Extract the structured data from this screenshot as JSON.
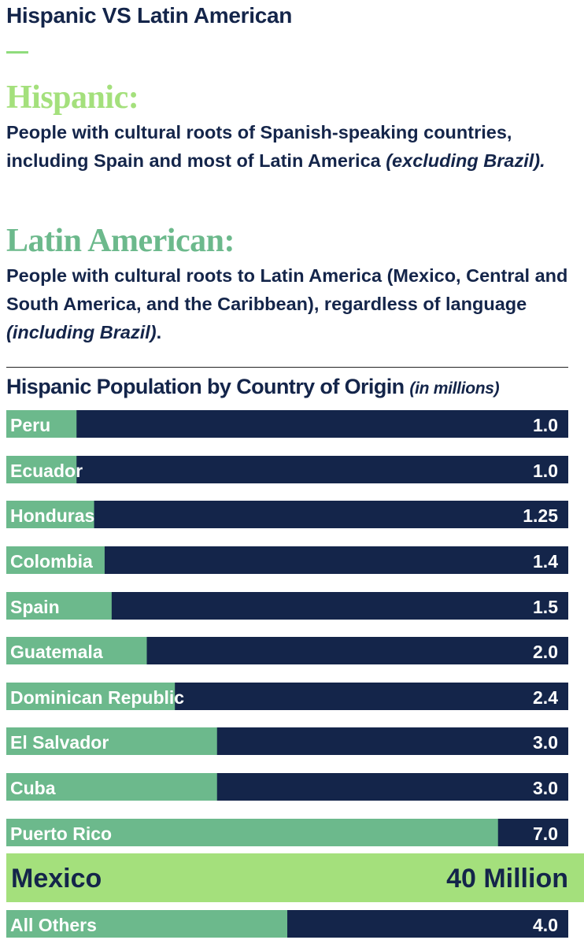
{
  "page": {
    "title": "Hispanic VS Latin American"
  },
  "definitions": {
    "hispanic": {
      "heading": "Hispanic:",
      "text": "People with cultural roots of Spanish-speaking countries, including Spain and most of Latin America ",
      "note": "(excluding Brazil)."
    },
    "latin_american": {
      "heading": "Latin American:",
      "text": "People with cultural roots to Latin America (Mexico, Central and South America, and the Caribbean), regardless of language ",
      "note": "(including Brazil)",
      "trail": "."
    }
  },
  "colors": {
    "navy": "#14254a",
    "green": "#6cb98c",
    "light_green": "#a4e07c",
    "hispanic_heading": "#a4e07c",
    "latin_heading": "#6cb98c"
  },
  "chart_data": {
    "type": "bar",
    "orientation": "horizontal",
    "title": "Hispanic Population by Country of Origin",
    "unit_label": "(in millions)",
    "xlim": [
      0,
      8
    ],
    "categories": [
      "Peru",
      "Ecuador",
      "Honduras",
      "Colombia",
      "Spain",
      "Guatemala",
      "Dominican Republic",
      "El Salvador",
      "Cuba",
      "Puerto Rico",
      "Mexico",
      "All Others"
    ],
    "values": [
      1.0,
      1.0,
      1.25,
      1.4,
      1.5,
      2.0,
      2.4,
      3.0,
      3.0,
      7.0,
      40,
      4.0
    ],
    "value_labels": [
      "1.0",
      "1.0",
      "1.25",
      "1.4",
      "1.5",
      "2.0",
      "2.4",
      "3.0",
      "3.0",
      "7.0",
      "40 Million",
      "4.0"
    ],
    "highlight": "Mexico"
  }
}
